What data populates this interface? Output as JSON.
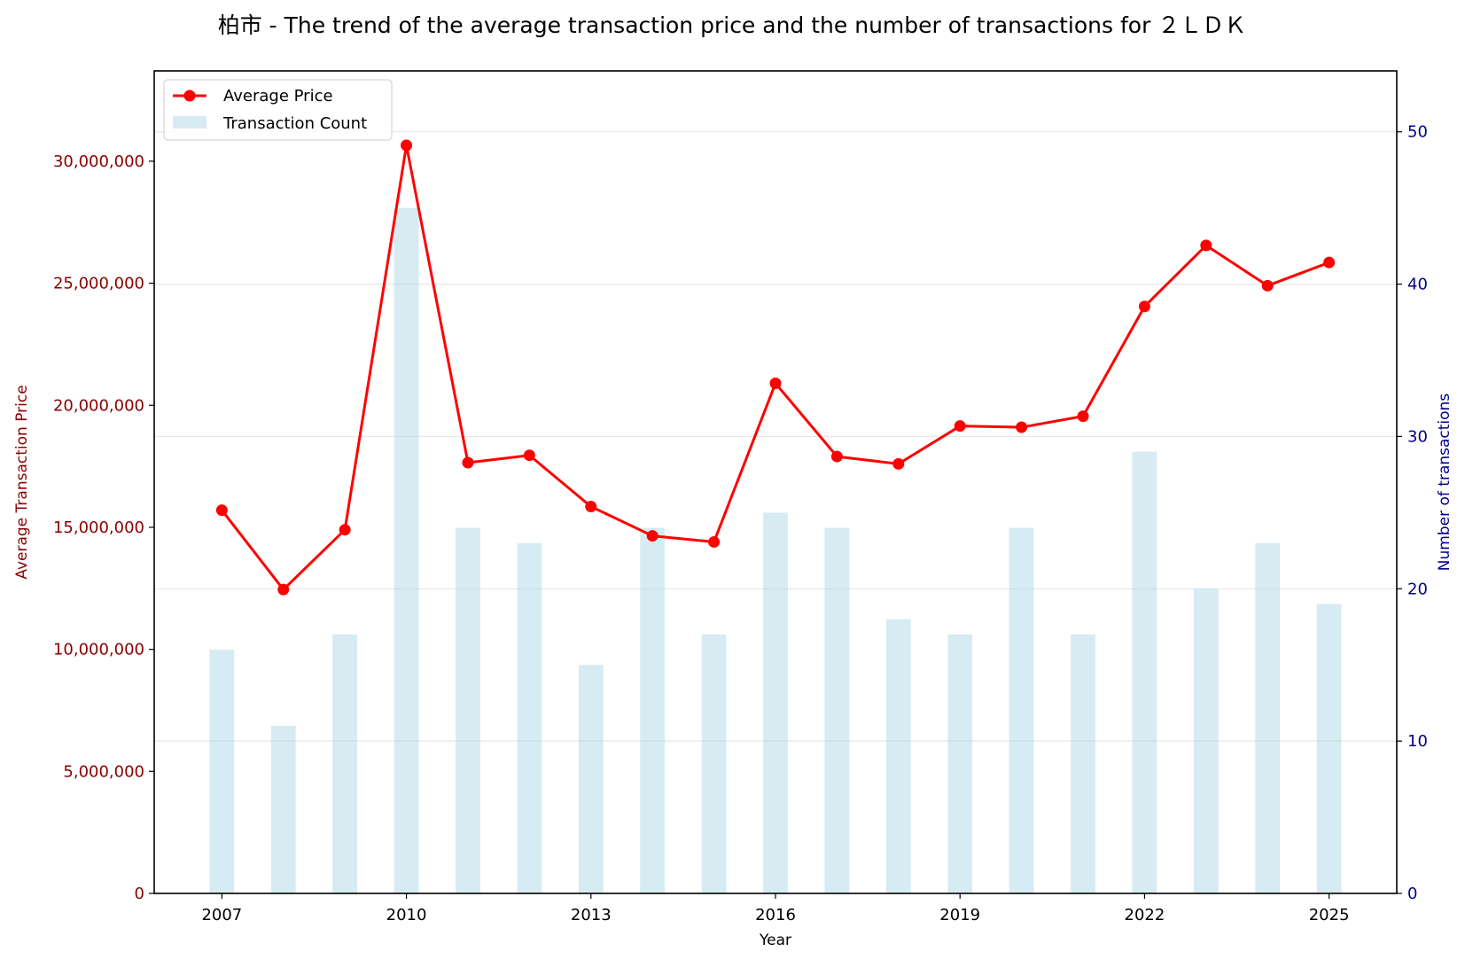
{
  "chart_data": {
    "type": "bar+line",
    "title": "柏市 - The trend of the average transaction price and the number of transactions for ２ＬＤＫ",
    "xlabel": "Year",
    "ylabel_left": "Average Transaction Price",
    "ylabel_right": "Number of transactions",
    "x": [
      2007,
      2008,
      2009,
      2010,
      2011,
      2012,
      2013,
      2014,
      2015,
      2016,
      2017,
      2018,
      2019,
      2020,
      2021,
      2022,
      2023,
      2024,
      2025
    ],
    "x_ticks": [
      2007,
      2010,
      2013,
      2016,
      2019,
      2022,
      2025
    ],
    "xlim": [
      2005.9,
      2026.1
    ],
    "ylim_left": [
      0,
      33700000
    ],
    "ylim_right": [
      0,
      54
    ],
    "y_ticks_left": [
      0,
      5000000,
      10000000,
      15000000,
      20000000,
      25000000,
      30000000
    ],
    "y_tick_labels_left": [
      "0",
      "5,000,000",
      "10,000,000",
      "15,000,000",
      "20,000,000",
      "25,000,000",
      "30,000,000"
    ],
    "y_ticks_right": [
      0,
      10,
      20,
      30,
      40,
      50
    ],
    "y_tick_labels_right": [
      "0",
      "10",
      "20",
      "30",
      "40",
      "50"
    ],
    "grid": "horizontal (right axis)",
    "legend_position": "top-left",
    "series": [
      {
        "name": "Average Price",
        "kind": "line",
        "axis": "left",
        "color": "#ff0000",
        "values": [
          15700000,
          12450000,
          14900000,
          30650000,
          17650000,
          17950000,
          15850000,
          14650000,
          14400000,
          20900000,
          17900000,
          17600000,
          19150000,
          19100000,
          19550000,
          24050000,
          26550000,
          24900000,
          25850000
        ]
      },
      {
        "name": "Transaction Count",
        "kind": "bar",
        "axis": "right",
        "color": "#add8e6",
        "values": [
          16,
          11,
          17,
          45,
          24,
          23,
          15,
          24,
          17,
          25,
          24,
          18,
          17,
          24,
          17,
          29,
          20,
          23,
          19
        ]
      }
    ]
  }
}
